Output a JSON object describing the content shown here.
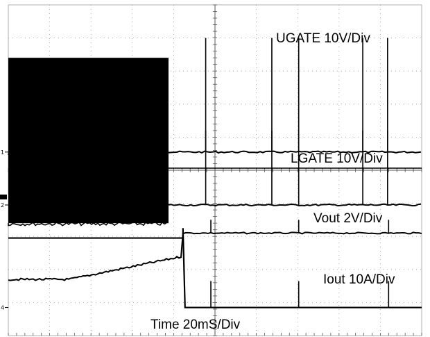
{
  "chart_data": {
    "type": "line",
    "title": "",
    "grid": true,
    "x": [
      0,
      10,
      20,
      30,
      40,
      50,
      60,
      70,
      80,
      90,
      100,
      110,
      120,
      130,
      140,
      150,
      160,
      170,
      180,
      190,
      200
    ],
    "xlabel": "",
    "xlim": [
      0,
      200
    ],
    "series": [
      {
        "label": "UGATE 10V/Div",
        "marker": "1",
        "shape": "pwm",
        "low": 5.5,
        "high": 8.4,
        "switch_end": 77.5,
        "idle": 5.55,
        "spikes": [
          95.5,
          127.5,
          140.5,
          171.5,
          183.5
        ]
      },
      {
        "label": "LGATE 10V/Div",
        "marker": "2",
        "shape": "pwm",
        "low": 3.4,
        "high": 5.6,
        "switch_end": 77.5,
        "idle": 3.95,
        "spikes": [
          95.5,
          127.5,
          140.5,
          171.5,
          183.5
        ]
      },
      {
        "label": "Vout 2V/Div",
        "marker": "",
        "shape": "ramp",
        "y_start": 1.7,
        "y_before_step": 2.4,
        "step_at": 84.5,
        "y_after": 3.1,
        "spikes": [
          98,
          140.5,
          184
        ]
      },
      {
        "label": "Iout 10A/Div",
        "marker": "4",
        "shape": "pulse",
        "baseline": 0.85,
        "peak": 3.1,
        "pulse_start": 84.5,
        "pulse_end": 85.5,
        "spikes": [
          98,
          140.5,
          184
        ]
      }
    ],
    "time_label": "Time 20mS/Div"
  }
}
